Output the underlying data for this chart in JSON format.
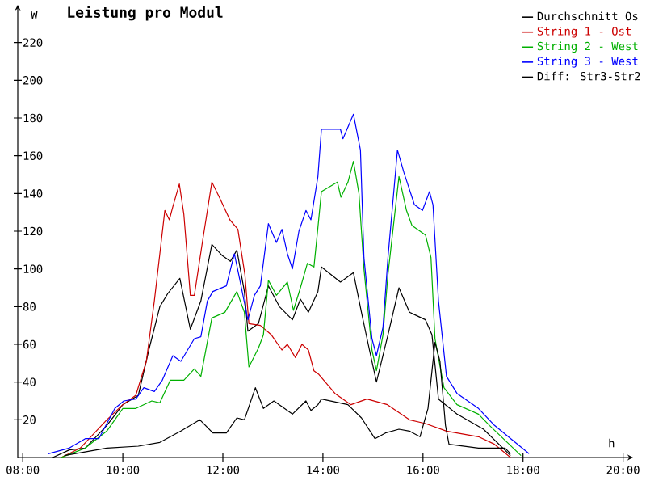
{
  "chart_data": {
    "type": "line",
    "title": "Leistung pro Modul",
    "xlabel": "h",
    "ylabel": "W",
    "xlim": [
      7.9,
      20.2
    ],
    "ylim": [
      0,
      240
    ],
    "xticks": [
      {
        "value": 8,
        "label": "08:00"
      },
      {
        "value": 10,
        "label": "10:00"
      },
      {
        "value": 12,
        "label": "12:00"
      },
      {
        "value": 14,
        "label": "14:00"
      },
      {
        "value": 16,
        "label": "16:00"
      },
      {
        "value": 18,
        "label": "18:00"
      },
      {
        "value": 20,
        "label": "20:00"
      }
    ],
    "yticks": [
      20,
      40,
      60,
      80,
      100,
      120,
      140,
      160,
      180,
      200,
      220
    ],
    "grid": false,
    "legend": "top right",
    "marker": "none",
    "line_style": "solid",
    "series": [
      {
        "name": "Durchschnitt Os",
        "color": "#000000",
        "x": [
          8.6,
          8.93,
          9.25,
          9.68,
          10.0,
          10.31,
          10.52,
          10.74,
          10.9,
          11.14,
          11.35,
          11.56,
          11.78,
          11.99,
          12.15,
          12.28,
          12.43,
          12.5,
          12.71,
          12.91,
          13.13,
          13.39,
          13.55,
          13.71,
          13.9,
          13.97,
          14.35,
          14.61,
          14.77,
          14.93,
          15.07,
          15.3,
          15.52,
          15.73,
          16.05,
          16.18,
          16.31,
          16.68,
          17.21,
          17.75
        ],
        "values": [
          0,
          4,
          5,
          17,
          28,
          33,
          57,
          80,
          87,
          95,
          68,
          83,
          113,
          107,
          104,
          110,
          88,
          67,
          71,
          91,
          80,
          73,
          84,
          77,
          88,
          101,
          93,
          98,
          77,
          57,
          40,
          65,
          90,
          77,
          73,
          65,
          31,
          23,
          15,
          1
        ]
      },
      {
        "name": "String 1 - Ost",
        "color": "#cc0000",
        "x": [
          8.77,
          9.15,
          9.68,
          10.0,
          10.26,
          10.47,
          10.63,
          10.74,
          10.84,
          10.93,
          11.0,
          11.13,
          11.22,
          11.35,
          11.43,
          11.59,
          11.78,
          11.93,
          12.14,
          12.3,
          12.44,
          12.52,
          12.75,
          12.97,
          13.18,
          13.29,
          13.45,
          13.58,
          13.71,
          13.82,
          13.92,
          14.24,
          14.56,
          14.88,
          15.29,
          15.73,
          16.05,
          16.47,
          17.11,
          17.43,
          17.75
        ],
        "values": [
          0,
          5,
          20,
          28,
          33,
          51,
          83,
          108,
          131,
          126,
          133,
          145,
          129,
          86,
          86,
          114,
          146,
          138,
          126,
          121,
          97,
          71,
          70,
          65,
          57,
          60,
          53,
          60,
          57,
          46,
          44,
          34,
          28,
          31,
          28,
          20,
          18,
          14,
          11,
          7,
          0
        ]
      },
      {
        "name": "String 2 - West",
        "color": "#00b000",
        "x": [
          8.77,
          9.25,
          9.68,
          10.0,
          10.26,
          10.58,
          10.74,
          10.95,
          11.22,
          11.43,
          11.56,
          11.78,
          12.04,
          12.28,
          12.43,
          12.52,
          12.71,
          12.81,
          12.91,
          13.07,
          13.29,
          13.41,
          13.55,
          13.69,
          13.82,
          13.9,
          13.97,
          14.29,
          14.36,
          14.5,
          14.61,
          14.72,
          14.82,
          14.98,
          15.07,
          15.2,
          15.3,
          15.52,
          15.67,
          15.78,
          16.05,
          16.16,
          16.24,
          16.42,
          16.68,
          17.11,
          17.33,
          17.96
        ],
        "values": [
          0,
          5,
          14,
          26,
          26,
          30,
          29,
          41,
          41,
          47,
          43,
          74,
          77,
          88,
          77,
          48,
          58,
          65,
          94,
          86,
          93,
          78,
          90,
          103,
          101,
          122,
          141,
          146,
          138,
          146,
          157,
          140,
          100,
          57,
          46,
          65,
          97,
          149,
          131,
          123,
          118,
          106,
          63,
          37,
          28,
          23,
          17,
          1
        ]
      },
      {
        "name": "String 3 - West",
        "color": "#0000ff",
        "x": [
          8.51,
          8.93,
          9.25,
          9.52,
          9.84,
          10.02,
          10.26,
          10.42,
          10.63,
          10.79,
          11.0,
          11.16,
          11.43,
          11.56,
          11.69,
          11.8,
          12.07,
          12.23,
          12.34,
          12.5,
          12.63,
          12.75,
          12.91,
          13.07,
          13.18,
          13.29,
          13.39,
          13.52,
          13.66,
          13.76,
          13.9,
          13.97,
          14.35,
          14.4,
          14.61,
          14.75,
          14.82,
          14.98,
          15.07,
          15.2,
          15.3,
          15.49,
          15.62,
          15.83,
          15.99,
          16.13,
          16.2,
          16.31,
          16.47,
          16.68,
          17.11,
          17.43,
          18.12
        ],
        "values": [
          2,
          5,
          10,
          10,
          26,
          30,
          31,
          37,
          35,
          41,
          54,
          51,
          63,
          64,
          83,
          88,
          91,
          108,
          94,
          73,
          86,
          91,
          124,
          114,
          121,
          108,
          100,
          120,
          131,
          126,
          149,
          174,
          174,
          169,
          182,
          163,
          106,
          63,
          54,
          69,
          106,
          163,
          151,
          134,
          131,
          141,
          134,
          83,
          43,
          34,
          26,
          17,
          2
        ]
      },
      {
        "name": "Diff: Str3-Str2",
        "color": "#000000",
        "x": [
          8.83,
          9.68,
          10.31,
          10.74,
          11.16,
          11.54,
          11.8,
          12.07,
          12.28,
          12.43,
          12.65,
          12.81,
          13.02,
          13.18,
          13.39,
          13.66,
          13.76,
          13.9,
          13.97,
          14.5,
          14.77,
          15.04,
          15.25,
          15.52,
          15.73,
          15.94,
          16.1,
          16.24,
          16.34,
          16.45,
          16.52,
          17.11,
          17.64,
          17.75
        ],
        "values": [
          1,
          5,
          6,
          8,
          14,
          20,
          13,
          13,
          21,
          20,
          37,
          26,
          30,
          27,
          23,
          30,
          25,
          28,
          31,
          28,
          21,
          10,
          13,
          15,
          14,
          11,
          26,
          61,
          51,
          17,
          7,
          5,
          5,
          2
        ]
      }
    ]
  }
}
